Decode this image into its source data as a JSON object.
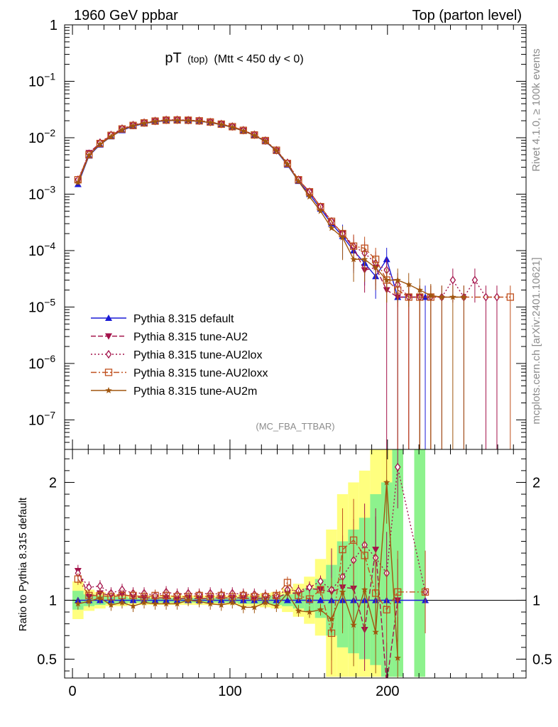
{
  "chart_data": {
    "type": "line",
    "header_left": "1960 GeV ppbar",
    "header_right": "Top (parton level)",
    "title_main": "pT",
    "title_sub": "(top)",
    "title_cond": "(Mtt < 450 dy < 0)",
    "reference": "(MC_FBA_TTBAR)",
    "side_rivet": "Rivet 4.1.0, ≥ 100k events",
    "side_mcplots": "mcplots.cern.ch [arXiv:2401.10621]",
    "ratio_ylabel": "Ratio to Pythia 8.315 default",
    "xlim": [
      -5,
      288
    ],
    "main_ylim": [
      3e-08,
      1
    ],
    "main_yscale": "log",
    "main_ytick_labels": [
      {
        "v": 1,
        "base": "1",
        "exp": ""
      },
      {
        "v": 0.1,
        "base": "10",
        "exp": "−1"
      },
      {
        "v": 0.01,
        "base": "10",
        "exp": "−2"
      },
      {
        "v": 0.001,
        "base": "10",
        "exp": "−3"
      },
      {
        "v": 0.0001,
        "base": "10",
        "exp": "−4"
      },
      {
        "v": 1e-05,
        "base": "10",
        "exp": "−5"
      },
      {
        "v": 1e-06,
        "base": "10",
        "exp": "−6"
      },
      {
        "v": 1e-07,
        "base": "10",
        "exp": "−7"
      }
    ],
    "ratio_ylim": [
      0.34,
      2.28
    ],
    "ratio_yticks": [
      0.5,
      1,
      2
    ],
    "ratio_ytick_labels": [
      "0.5",
      "1",
      "2"
    ],
    "xticks": [
      0,
      100,
      200
    ],
    "xtick_labels": [
      "0",
      "100",
      "200"
    ],
    "band_x": [
      0,
      7,
      14,
      21,
      28,
      35,
      42,
      49,
      56,
      63,
      70,
      77,
      84,
      91,
      98,
      105,
      112,
      119,
      126,
      133,
      140,
      147,
      154,
      161,
      168,
      175,
      182,
      189,
      196,
      203,
      210,
      217,
      224,
      231
    ],
    "band_yellow": [
      [
        0.84,
        1.16
      ],
      [
        0.91,
        1.09
      ],
      [
        0.93,
        1.07
      ],
      [
        0.95,
        1.05
      ],
      [
        0.95,
        1.05
      ],
      [
        0.96,
        1.04
      ],
      [
        0.96,
        1.04
      ],
      [
        0.96,
        1.04
      ],
      [
        0.96,
        1.04
      ],
      [
        0.96,
        1.04
      ],
      [
        0.96,
        1.04
      ],
      [
        0.96,
        1.04
      ],
      [
        0.96,
        1.04
      ],
      [
        0.96,
        1.04
      ],
      [
        0.96,
        1.04
      ],
      [
        0.95,
        1.05
      ],
      [
        0.95,
        1.05
      ],
      [
        0.94,
        1.06
      ],
      [
        0.93,
        1.07
      ],
      [
        0.9,
        1.1
      ],
      [
        0.86,
        1.14
      ],
      [
        0.8,
        1.2
      ],
      [
        0.7,
        1.35
      ],
      [
        0.35,
        1.6
      ],
      [
        0.35,
        1.9
      ],
      [
        0.35,
        2.0
      ],
      [
        0.35,
        2.1
      ],
      [
        0.35,
        2.3
      ],
      [
        0.35,
        2.3
      ],
      [
        0.35,
        2.3
      ],
      [
        null,
        null
      ],
      [
        0.35,
        2.3
      ],
      [
        null,
        null
      ]
    ],
    "band_green": [
      [
        0.92,
        1.08
      ],
      [
        0.95,
        1.05
      ],
      [
        0.96,
        1.04
      ],
      [
        0.97,
        1.03
      ],
      [
        0.97,
        1.03
      ],
      [
        0.98,
        1.02
      ],
      [
        0.98,
        1.02
      ],
      [
        0.98,
        1.02
      ],
      [
        0.98,
        1.02
      ],
      [
        0.98,
        1.02
      ],
      [
        0.98,
        1.02
      ],
      [
        0.98,
        1.02
      ],
      [
        0.98,
        1.02
      ],
      [
        0.98,
        1.02
      ],
      [
        0.98,
        1.02
      ],
      [
        0.97,
        1.03
      ],
      [
        0.97,
        1.03
      ],
      [
        0.97,
        1.03
      ],
      [
        0.96,
        1.04
      ],
      [
        0.95,
        1.05
      ],
      [
        0.93,
        1.07
      ],
      [
        0.9,
        1.1
      ],
      [
        0.85,
        1.18
      ],
      [
        0.7,
        1.3
      ],
      [
        0.6,
        1.5
      ],
      [
        0.55,
        1.6
      ],
      [
        0.5,
        1.7
      ],
      [
        0.45,
        1.9
      ],
      [
        0.35,
        2.0
      ],
      [
        0.35,
        2.3
      ],
      [
        null,
        null
      ],
      [
        0.35,
        2.3
      ],
      [
        null,
        null
      ]
    ],
    "series": [
      {
        "name": "Pythia 8.315 default",
        "color": "#1a1ad6",
        "marker": "triangle-up",
        "dash": "",
        "x": [
          3.5,
          10.5,
          17.5,
          24.5,
          31.5,
          38.5,
          45.5,
          52.5,
          59.5,
          66.5,
          73.5,
          80.5,
          87.5,
          94.5,
          101.5,
          108.5,
          115.5,
          122.5,
          129.5,
          136.5,
          143.5,
          150.5,
          157.5,
          164.5,
          171.5,
          178.5,
          185.5,
          192.5,
          199.5,
          206.5,
          224
        ],
        "y": [
          0.0015,
          0.0048,
          0.0075,
          0.0105,
          0.0135,
          0.016,
          0.0178,
          0.0192,
          0.02,
          0.0202,
          0.02,
          0.0195,
          0.0185,
          0.017,
          0.0153,
          0.0132,
          0.011,
          0.0086,
          0.0058,
          0.0033,
          0.0017,
          0.001,
          0.00055,
          0.0003,
          0.00018,
          0.0001,
          6e-05,
          3.5e-05,
          7e-05,
          1.5e-05,
          1.5e-05
        ],
        "ratio_x": [
          3.5,
          10.5,
          17.5,
          24.5,
          31.5,
          38.5,
          45.5,
          52.5,
          59.5,
          66.5,
          73.5,
          80.5,
          87.5,
          94.5,
          101.5,
          108.5,
          115.5,
          122.5,
          129.5,
          136.5,
          143.5,
          150.5,
          157.5,
          164.5,
          171.5,
          178.5,
          185.5,
          192.5,
          199.5,
          206.5,
          224
        ],
        "ratio": [
          1,
          1,
          1,
          1,
          1,
          1,
          1,
          1,
          1,
          1,
          1,
          1,
          1,
          1,
          1,
          1,
          1,
          1,
          1,
          1,
          1,
          1,
          1,
          1,
          1,
          1,
          1,
          1,
          1,
          1,
          1
        ]
      },
      {
        "name": "Pythia 8.315 tune-AU2",
        "color": "#a3124a",
        "marker": "triangle-down",
        "dash": "7,3",
        "x": [
          3.5,
          10.5,
          17.5,
          24.5,
          31.5,
          38.5,
          45.5,
          52.5,
          59.5,
          66.5,
          73.5,
          80.5,
          87.5,
          94.5,
          101.5,
          108.5,
          115.5,
          122.5,
          129.5,
          136.5,
          143.5,
          150.5,
          157.5,
          164.5,
          171.5,
          178.5,
          185.5,
          192.5,
          199.5,
          206.5,
          213.5,
          220.5
        ],
        "y": [
          0.0017,
          0.0054,
          0.008,
          0.011,
          0.0142,
          0.0165,
          0.0182,
          0.0196,
          0.0204,
          0.0205,
          0.0203,
          0.0197,
          0.0188,
          0.0173,
          0.0155,
          0.0134,
          0.0111,
          0.0088,
          0.0059,
          0.0035,
          0.0018,
          0.0011,
          0.0006,
          0.00032,
          0.0002,
          0.00011,
          4.5e-05,
          5e-05,
          2e-05,
          1.5e-05,
          1.5e-05,
          1.5e-05
        ],
        "ratio_x": [
          3.5,
          10.5,
          17.5,
          24.5,
          31.5,
          38.5,
          45.5,
          52.5,
          59.5,
          66.5,
          73.5,
          80.5,
          87.5,
          94.5,
          101.5,
          108.5,
          115.5,
          122.5,
          129.5,
          136.5,
          143.5,
          150.5,
          157.5,
          164.5,
          171.5,
          178.5,
          185.5,
          192.5,
          199.5,
          206.5
        ],
        "ratio": [
          1.25,
          1.03,
          1.06,
          1.04,
          1.05,
          1.03,
          1.02,
          1.02,
          1.02,
          1.01,
          1.02,
          1.01,
          1.02,
          1.02,
          1.02,
          1.02,
          1.01,
          1.02,
          1.02,
          1.06,
          1.06,
          1.1,
          1.09,
          1.07,
          1.11,
          1.1,
          0.75,
          1.43,
          0.29,
          1.0
        ]
      },
      {
        "name": "Pythia 8.315 tune-AU2lox",
        "color": "#a3124a",
        "marker": "diamond-open",
        "dash": "2,3",
        "x": [
          3.5,
          10.5,
          17.5,
          24.5,
          31.5,
          38.5,
          45.5,
          52.5,
          59.5,
          66.5,
          73.5,
          80.5,
          87.5,
          94.5,
          101.5,
          108.5,
          115.5,
          122.5,
          129.5,
          136.5,
          143.5,
          150.5,
          157.5,
          164.5,
          171.5,
          178.5,
          185.5,
          192.5,
          199.5,
          206.5,
          213.5,
          220.5,
          227.5,
          234.5,
          241.5,
          248.5,
          255.5,
          262.5,
          269.5
        ],
        "y": [
          0.0018,
          0.0052,
          0.0082,
          0.0112,
          0.0145,
          0.0168,
          0.0185,
          0.0198,
          0.0207,
          0.0208,
          0.0205,
          0.02,
          0.019,
          0.0175,
          0.0158,
          0.0136,
          0.0113,
          0.0089,
          0.006,
          0.0036,
          0.0018,
          0.0011,
          0.0006,
          0.00033,
          0.0002,
          0.00012,
          9e-05,
          6e-05,
          4.5e-05,
          2.5e-05,
          1.5e-05,
          1.5e-05,
          1.5e-05,
          1.5e-05,
          3e-05,
          1.5e-05,
          3e-05,
          1.5e-05,
          1.5e-05
        ],
        "ratio_x": [
          3.5,
          10.5,
          17.5,
          24.5,
          31.5,
          38.5,
          45.5,
          52.5,
          59.5,
          66.5,
          73.5,
          80.5,
          87.5,
          94.5,
          101.5,
          108.5,
          115.5,
          122.5,
          129.5,
          136.5,
          143.5,
          150.5,
          157.5,
          164.5,
          171.5,
          178.5,
          185.5,
          192.5,
          199.5,
          206.5,
          224
        ],
        "ratio": [
          1.23,
          1.11,
          1.12,
          1.06,
          1.09,
          1.06,
          1.06,
          1.04,
          1.07,
          1.05,
          1.06,
          1.05,
          1.06,
          1.05,
          1.06,
          1.05,
          1.05,
          1.04,
          1.04,
          1.09,
          1.08,
          1.11,
          1.16,
          1.09,
          1.2,
          1.34,
          1.47,
          1.36,
          1.23,
          2.13,
          1.07
        ]
      },
      {
        "name": "Pythia 8.315 tune-AU2loxx",
        "color": "#c0501e",
        "marker": "square-open",
        "dash": "8,3,2,3",
        "x": [
          3.5,
          10.5,
          17.5,
          24.5,
          31.5,
          38.5,
          45.5,
          52.5,
          59.5,
          66.5,
          73.5,
          80.5,
          87.5,
          94.5,
          101.5,
          108.5,
          115.5,
          122.5,
          129.5,
          136.5,
          143.5,
          150.5,
          157.5,
          164.5,
          171.5,
          178.5,
          185.5,
          192.5,
          199.5,
          206.5,
          213.5,
          220.5,
          227.5,
          278
        ],
        "y": [
          0.0018,
          0.005,
          0.0079,
          0.011,
          0.0143,
          0.0165,
          0.0183,
          0.0197,
          0.0205,
          0.0206,
          0.0204,
          0.0199,
          0.019,
          0.0174,
          0.0157,
          0.0135,
          0.0112,
          0.0089,
          0.006,
          0.0035,
          0.0018,
          0.0011,
          0.0006,
          0.00033,
          0.0002,
          0.00012,
          0.00011,
          7e-05,
          3e-05,
          2e-05,
          1.5e-05,
          1.5e-05,
          1.5e-05,
          1.5e-05
        ],
        "ratio_x": [
          3.5,
          10.5,
          17.5,
          24.5,
          31.5,
          38.5,
          45.5,
          52.5,
          59.5,
          66.5,
          73.5,
          80.5,
          87.5,
          94.5,
          101.5,
          108.5,
          115.5,
          122.5,
          129.5,
          136.5,
          143.5,
          150.5,
          157.5,
          164.5,
          171.5,
          178.5,
          185.5,
          192.5,
          199.5,
          206.5,
          224
        ],
        "ratio": [
          1.18,
          1.04,
          1.04,
          1.03,
          1.04,
          1.04,
          1.03,
          1.04,
          1.04,
          1.03,
          1.03,
          1.04,
          1.03,
          1.04,
          1.03,
          1.04,
          1.03,
          1.03,
          1.04,
          1.15,
          1.04,
          1.01,
          1.09,
          0.72,
          1.43,
          1.51,
          1.38,
          1.06,
          0.92,
          1.07,
          1.07
        ]
      },
      {
        "name": "Pythia 8.315 tune-AU2m",
        "color": "#a0560f",
        "marker": "star",
        "dash": "",
        "x": [
          3.5,
          10.5,
          17.5,
          24.5,
          31.5,
          38.5,
          45.5,
          52.5,
          59.5,
          66.5,
          73.5,
          80.5,
          87.5,
          94.5,
          101.5,
          108.5,
          115.5,
          122.5,
          129.5,
          136.5,
          143.5,
          150.5,
          157.5,
          164.5,
          171.5,
          178.5,
          185.5,
          192.5,
          199.5,
          206.5,
          213.5,
          220.5,
          227.5,
          234.5,
          241.5,
          248.5
        ],
        "y": [
          0.0016,
          0.0049,
          0.0077,
          0.0104,
          0.0138,
          0.0163,
          0.018,
          0.0194,
          0.0202,
          0.0202,
          0.0201,
          0.0196,
          0.0186,
          0.0171,
          0.0153,
          0.0132,
          0.011,
          0.0087,
          0.0059,
          0.0034,
          0.0017,
          0.0009,
          0.0005,
          0.00025,
          0.00017,
          7e-05,
          7e-05,
          5e-05,
          3e-05,
          3e-05,
          2.5e-05,
          2e-05,
          1.6e-05,
          1.5e-05,
          1.5e-05,
          1.5e-05
        ],
        "ratio_x": [
          3.5,
          10.5,
          17.5,
          24.5,
          31.5,
          38.5,
          45.5,
          52.5,
          59.5,
          66.5,
          73.5,
          80.5,
          87.5,
          94.5,
          101.5,
          108.5,
          115.5,
          122.5,
          129.5,
          136.5,
          143.5,
          150.5,
          157.5,
          164.5,
          171.5,
          178.5,
          185.5,
          192.5,
          199.5,
          206.5
        ],
        "ratio": [
          0.97,
          0.99,
          1.02,
          0.96,
          0.98,
          0.95,
          0.98,
          0.97,
          0.97,
          0.97,
          1.0,
          0.99,
          0.97,
          0.96,
          0.98,
          0.94,
          0.94,
          0.98,
          0.95,
          1.06,
          0.91,
          0.9,
          0.92,
          0.84,
          1.07,
          0.79,
          1.09,
          0.73,
          2.0,
          0.51
        ]
      }
    ]
  }
}
